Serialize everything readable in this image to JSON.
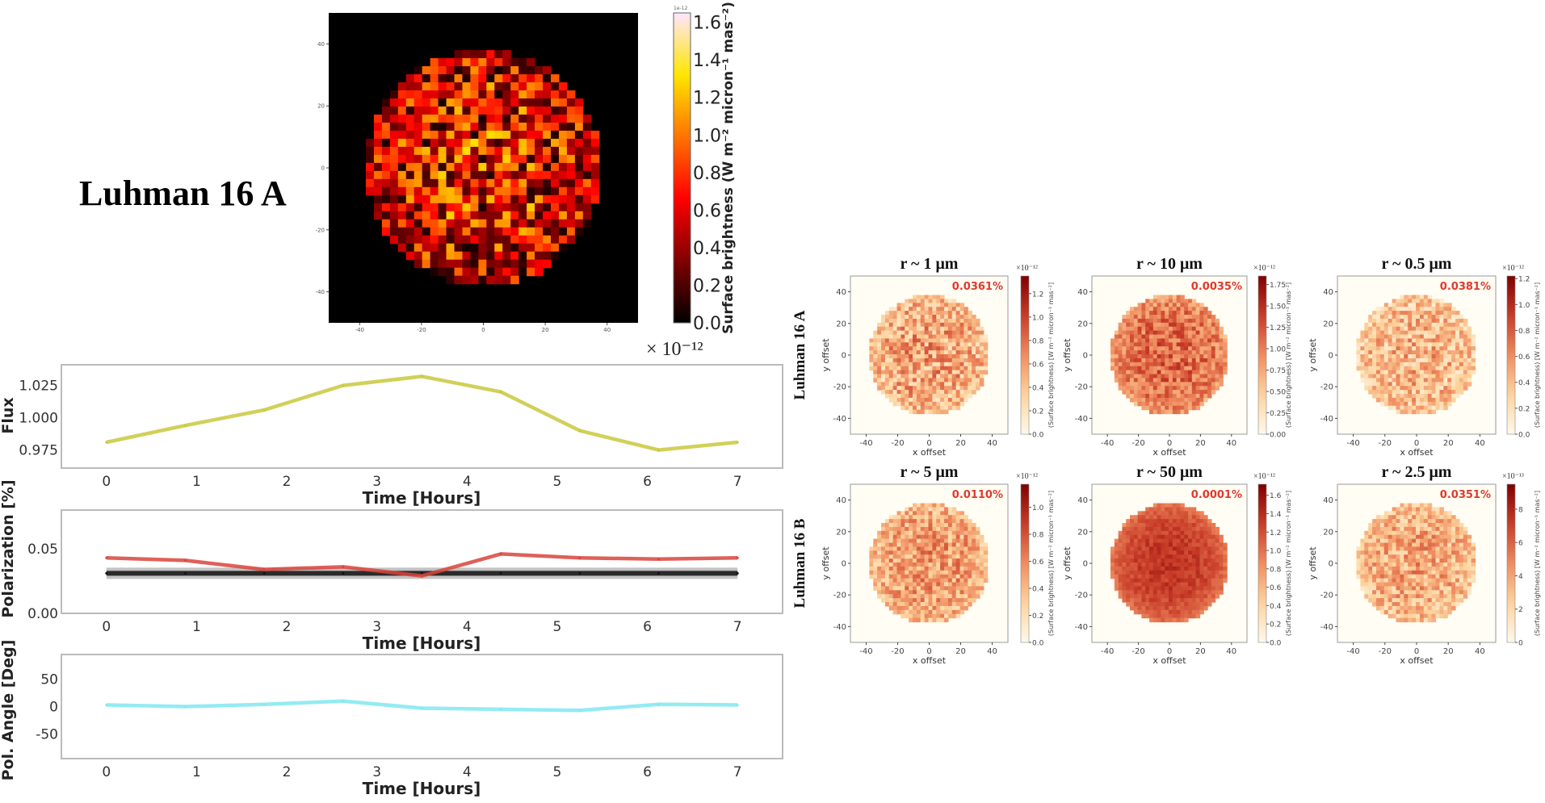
{
  "title": "Luhman 16 A",
  "chart_data": [
    {
      "type": "heatmap",
      "id": "main-map",
      "colormap": "hot",
      "xlim": [
        -50,
        50
      ],
      "ylim": [
        -50,
        50
      ],
      "xticks": [
        "-40",
        "-20",
        "0",
        "20",
        "40"
      ],
      "yticks": [
        "-40",
        "-20",
        "0",
        "20",
        "40"
      ],
      "colorbar": {
        "ticks": [
          "0.0",
          "0.2",
          "0.4",
          "0.6",
          "0.8",
          "1.0",
          "1.2",
          "1.4",
          "1.6"
        ],
        "max": 1.65,
        "label": "Surface brightness (W m⁻² micron⁻¹ mas⁻²)",
        "offset_label": "1e-12",
        "scale_label": "× 10⁻¹²"
      }
    },
    {
      "type": "line",
      "id": "flux",
      "ylabel": "Flux",
      "xlabel": "Time [Hours]",
      "xlim": [
        -0.5,
        7.5
      ],
      "ylim": [
        0.961,
        1.041
      ],
      "xticks": [
        0,
        1,
        2,
        3,
        4,
        5,
        6,
        7
      ],
      "yticks": [
        "0.975",
        "1.000",
        "1.025"
      ],
      "x": [
        0,
        0.875,
        1.75,
        2.625,
        3.5,
        4.375,
        5.25,
        6.125,
        7
      ],
      "series": [
        {
          "values": [
            0.981,
            0.994,
            1.006,
            1.025,
            1.032,
            1.02,
            0.99,
            0.975,
            0.981
          ],
          "color": "#c9c83c"
        }
      ]
    },
    {
      "type": "line",
      "id": "polarization",
      "ylabel": "Polarization [%]",
      "xlabel": "Time [Hours]",
      "xlim": [
        -0.5,
        7.5
      ],
      "ylim": [
        0,
        0.08
      ],
      "xticks": [
        0,
        1,
        2,
        3,
        4,
        5,
        6,
        7
      ],
      "yticks": [
        "0.00",
        "0.05"
      ],
      "x": [
        0,
        0.875,
        1.75,
        2.625,
        3.5,
        4.375,
        5.25,
        6.125,
        7
      ],
      "series": [
        {
          "values": [
            0.031,
            0.031,
            0.031,
            0.031,
            0.031,
            0.031,
            0.031,
            0.031,
            0.031
          ],
          "color": "#111111"
        },
        {
          "values": [
            0.043,
            0.041,
            0.034,
            0.036,
            0.029,
            0.046,
            0.043,
            0.042,
            0.043
          ],
          "color": "#d9443c"
        }
      ]
    },
    {
      "type": "line",
      "id": "pol-angle",
      "ylabel": "Pol. Angle [Deg]",
      "xlabel": "Time [Hours]",
      "xlim": [
        -0.5,
        7.5
      ],
      "ylim": [
        -95,
        95
      ],
      "xticks": [
        0,
        1,
        2,
        3,
        4,
        5,
        6,
        7
      ],
      "yticks": [
        "-50",
        "0",
        "50"
      ],
      "x": [
        0,
        0.875,
        1.75,
        2.625,
        3.5,
        4.375,
        5.25,
        6.125,
        7
      ],
      "series": [
        {
          "values": [
            3,
            0,
            4,
            10,
            -3,
            -5,
            -7,
            4,
            3
          ],
          "color": "#80e8f2"
        }
      ]
    },
    {
      "type": "heatmap",
      "id": "grid",
      "colormap": "OrRd",
      "row_labels": [
        "Luhman 16 A",
        "Luhman 16 B"
      ],
      "xlabel": "x offset",
      "ylabel": "y offset",
      "colorbar_label": "(Surface brightness) [W m⁻² micron⁻¹ mas⁻²]",
      "xlim": [
        -50,
        50
      ],
      "ylim": [
        -50,
        50
      ],
      "xticks": [
        "-40",
        "-20",
        "0",
        "20",
        "40"
      ],
      "yticks": [
        "-40",
        "-20",
        "0",
        "20",
        "40"
      ],
      "accent_color": "#e0392b",
      "panels": [
        {
          "title": "r ~ 1 μm",
          "annotation": "0.0361%",
          "scale_label": "×10⁻¹²",
          "cbar_ticks": [
            "0.0",
            "0.2",
            "0.4",
            "0.6",
            "0.8",
            "1.0",
            "1.2"
          ],
          "cbar_values": [
            0,
            0.2,
            0.4,
            0.6,
            0.8,
            1.0,
            1.2
          ],
          "cbar_max": 1.35
        },
        {
          "title": "r ~ 10 μm",
          "annotation": "0.0035%",
          "scale_label": "×10⁻¹²",
          "cbar_ticks": [
            "0.00",
            "0.25",
            "0.50",
            "0.75",
            "1.00",
            "1.25",
            "1.50",
            "1.75"
          ],
          "cbar_values": [
            0,
            0.25,
            0.5,
            0.75,
            1.0,
            1.25,
            1.5,
            1.75
          ],
          "cbar_max": 1.85
        },
        {
          "title": "r ~ 0.5 μm",
          "annotation": "0.0381%",
          "scale_label": "×10⁻¹²",
          "cbar_ticks": [
            "0.0",
            "0.2",
            "0.4",
            "0.6",
            "0.8",
            "1.0",
            "1.2"
          ],
          "cbar_values": [
            0,
            0.2,
            0.4,
            0.6,
            0.8,
            1.0,
            1.2
          ],
          "cbar_max": 1.22
        },
        {
          "title": "r ~ 5 μm",
          "annotation": "0.0110%",
          "scale_label": "×10⁻¹²",
          "cbar_ticks": [
            "0.0",
            "0.2",
            "0.4",
            "0.6",
            "0.8",
            "1.0"
          ],
          "cbar_values": [
            0,
            0.2,
            0.4,
            0.6,
            0.8,
            1.0
          ],
          "cbar_max": 1.17
        },
        {
          "title": "r ~ 50 μm",
          "annotation": "0.0001%",
          "scale_label": "×10⁻¹²",
          "cbar_ticks": [
            "0.0",
            "0.2",
            "0.4",
            "0.6",
            "0.8",
            "1.0",
            "1.2",
            "1.4",
            "1.6"
          ],
          "cbar_values": [
            0,
            0.2,
            0.4,
            0.6,
            0.8,
            1.0,
            1.2,
            1.4,
            1.6
          ],
          "cbar_max": 1.72
        },
        {
          "title": "r ~ 2.5 μm",
          "annotation": "0.0351%",
          "scale_label": "×10⁻¹³",
          "cbar_ticks": [
            "0",
            "2",
            "4",
            "6",
            "8"
          ],
          "cbar_values": [
            0,
            2,
            4,
            6,
            8
          ],
          "cbar_max": 9.5
        }
      ]
    }
  ]
}
